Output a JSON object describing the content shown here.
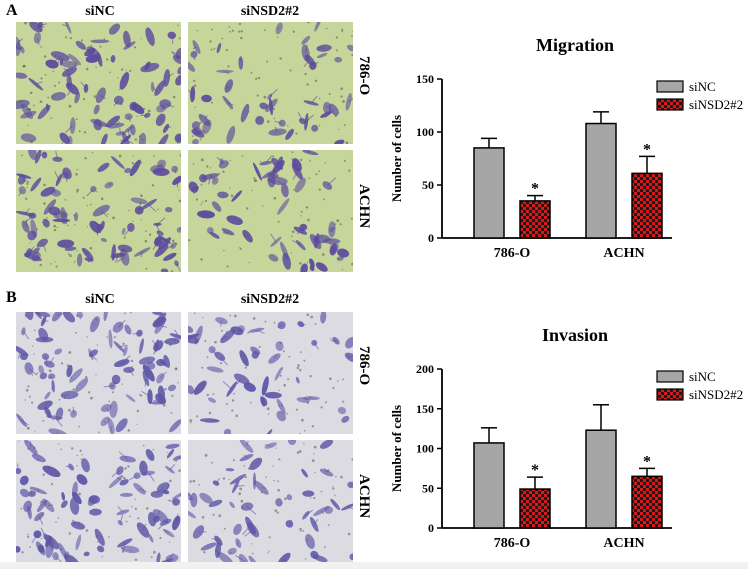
{
  "panels": {
    "a": {
      "letter": "A",
      "columns": [
        "siNC",
        "siNSD2#2"
      ],
      "rows": [
        "786-O",
        "ACHN"
      ]
    },
    "b": {
      "letter": "B",
      "columns": [
        "siNC",
        "siNSD2#2"
      ],
      "rows": [
        "786-O",
        "ACHN"
      ]
    }
  },
  "photo_colors": {
    "migration_bg": "#c6d69b",
    "migration_cell": "#5c4a9d",
    "invasion_bg": "#dcdbe2",
    "invasion_cell": "#5d56a6"
  },
  "chart_data": [
    {
      "type": "bar",
      "title": "Migration",
      "ylabel": "Number of cells",
      "xlabel": "",
      "categories": [
        "786-O",
        "ACHN"
      ],
      "ylim": [
        0,
        150
      ],
      "yticks": [
        0,
        50,
        100,
        150
      ],
      "series": [
        {
          "name": "siNC",
          "values": [
            85,
            108
          ],
          "errors": [
            9,
            11
          ],
          "color": "#a6a6a6",
          "pattern": "solid"
        },
        {
          "name": "siNSD2#2",
          "values": [
            35,
            61
          ],
          "errors": [
            5,
            16
          ],
          "color": "#d7191c",
          "pattern": "checker"
        }
      ],
      "annotations": [
        {
          "series": "siNSD2#2",
          "category": "786-O",
          "text": "*"
        },
        {
          "series": "siNSD2#2",
          "category": "ACHN",
          "text": "*"
        }
      ],
      "legend": "top-right",
      "grid": false
    },
    {
      "type": "bar",
      "title": "Invasion",
      "ylabel": "Number of cells",
      "xlabel": "",
      "categories": [
        "786-O",
        "ACHN"
      ],
      "ylim": [
        0,
        200
      ],
      "yticks": [
        0,
        50,
        100,
        150,
        200
      ],
      "series": [
        {
          "name": "siNC",
          "values": [
            107,
            123
          ],
          "errors": [
            19,
            32
          ],
          "color": "#a6a6a6",
          "pattern": "solid"
        },
        {
          "name": "siNSD2#2",
          "values": [
            49,
            65
          ],
          "errors": [
            15,
            10
          ],
          "color": "#d7191c",
          "pattern": "checker"
        }
      ],
      "annotations": [
        {
          "series": "siNSD2#2",
          "category": "786-O",
          "text": "*"
        },
        {
          "series": "siNSD2#2",
          "category": "ACHN",
          "text": "*"
        }
      ],
      "legend": "top-right",
      "grid": false
    }
  ]
}
